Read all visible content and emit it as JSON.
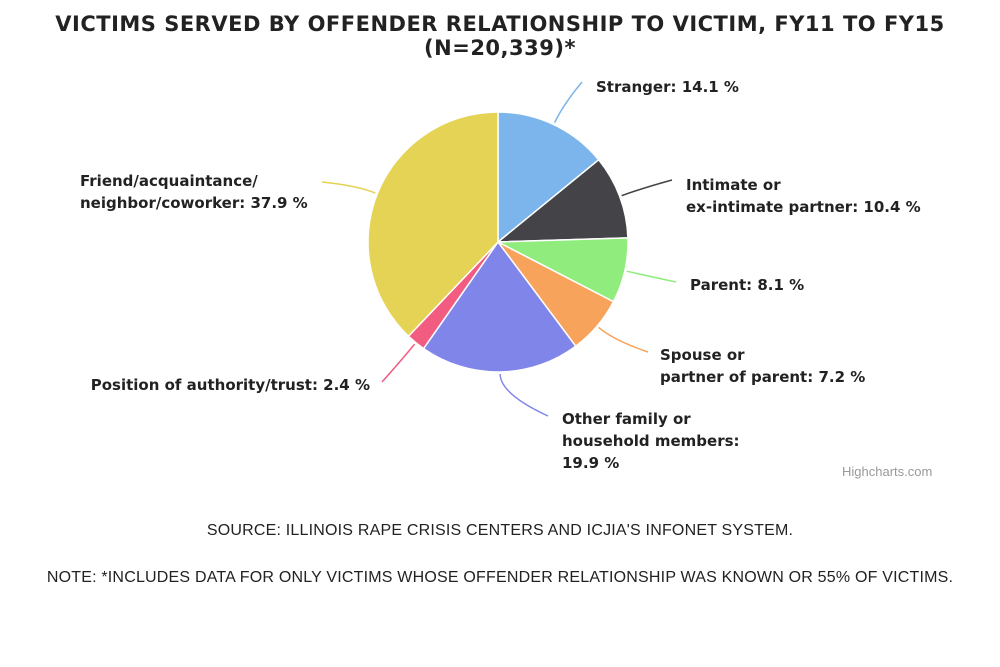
{
  "chart_data": {
    "type": "pie",
    "title": "VICTIMS SERVED BY OFFENDER RELATIONSHIP TO VICTIM, FY11 TO FY15 (N=20,339)*",
    "slices": [
      {
        "label": "Stranger: 14.1 %",
        "value": 14.1,
        "color": "#7cb5ec"
      },
      {
        "label": "Intimate or\nex-intimate partner: 10.4 %",
        "value": 10.4,
        "color": "#434348"
      },
      {
        "label": "Parent: 8.1 %",
        "value": 8.1,
        "color": "#90ed7d"
      },
      {
        "label": "Spouse or\npartner of parent: 7.2 %",
        "value": 7.2,
        "color": "#f7a35c"
      },
      {
        "label": "Other family or\nhousehold members:\n19.9 %",
        "value": 19.9,
        "color": "#8085e9"
      },
      {
        "label": "Position of authority/trust: 2.4 %",
        "value": 2.4,
        "color": "#f15c80"
      },
      {
        "label": "Friend/acquaintance/\nneighbor/coworker: 37.9 %",
        "value": 37.9,
        "color": "#e4d354"
      }
    ],
    "credit": "Highcharts.com"
  },
  "source": "SOURCE: ILLINOIS RAPE CRISIS CENTERS AND ICJIA'S INFONET SYSTEM.",
  "note": "NOTE: *INCLUDES DATA FOR ONLY VICTIMS WHOSE OFFENDER RELATIONSHIP WAS KNOWN OR 55% OF VICTIMS."
}
